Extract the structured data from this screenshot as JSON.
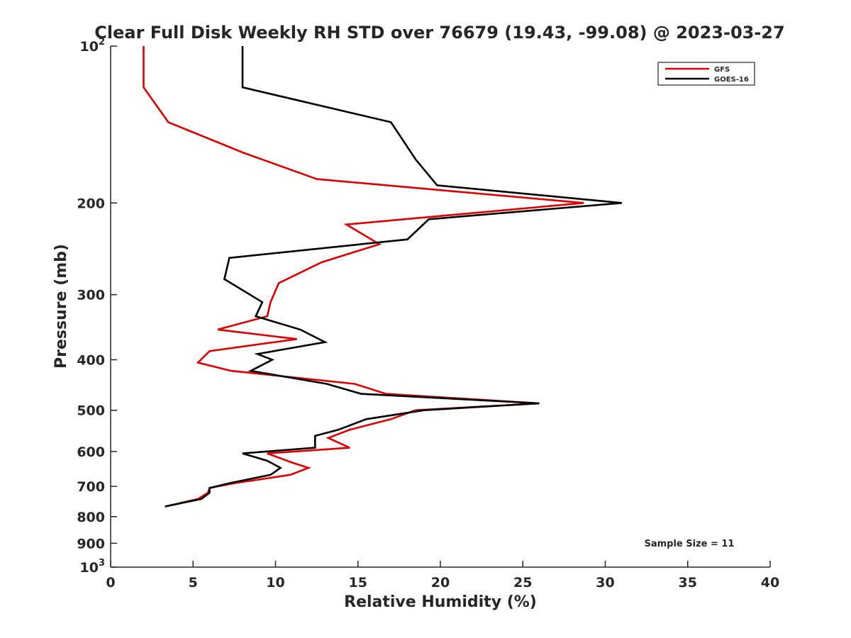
{
  "chart_data": {
    "type": "line",
    "title": "Clear Full Disk Weekly RH STD over 76679 (19.43, -99.08) @ 2023-03-27",
    "xlabel": "Relative Humidity (%)",
    "ylabel": "Pressure (mb)",
    "xlim": [
      0,
      40
    ],
    "ylim": [
      100,
      1000
    ],
    "y_scale": "log",
    "y_reversed": true,
    "grid": false,
    "legend_position": "top-right",
    "x_ticks": [
      0,
      5,
      10,
      15,
      20,
      25,
      30,
      35,
      40
    ],
    "x_tick_labels": [
      "0",
      "5",
      "10",
      "15",
      "20",
      "25",
      "30",
      "35",
      "40"
    ],
    "y_ticks": [
      100,
      200,
      300,
      400,
      500,
      600,
      700,
      800,
      900,
      1000
    ],
    "y_tick_labels": [
      {
        "base": "10",
        "sup": "2"
      },
      {
        "base": "200",
        "sup": ""
      },
      {
        "base": "300",
        "sup": ""
      },
      {
        "base": "400",
        "sup": ""
      },
      {
        "base": "500",
        "sup": ""
      },
      {
        "base": "600",
        "sup": ""
      },
      {
        "base": "700",
        "sup": ""
      },
      {
        "base": "800",
        "sup": ""
      },
      {
        "base": "900",
        "sup": ""
      },
      {
        "base": "10",
        "sup": "3"
      }
    ],
    "annotation": "Sample Size = 11",
    "series": [
      {
        "name": "GFS",
        "color": "#e00000",
        "points": [
          [
            2.0,
            100
          ],
          [
            2.0,
            120
          ],
          [
            3.5,
            140
          ],
          [
            8.0,
            160
          ],
          [
            12.5,
            180
          ],
          [
            28.7,
            200
          ],
          [
            14.3,
            220
          ],
          [
            16.3,
            240
          ],
          [
            12.8,
            260
          ],
          [
            10.2,
            285
          ],
          [
            9.7,
            310
          ],
          [
            9.5,
            330
          ],
          [
            6.5,
            350
          ],
          [
            11.3,
            365
          ],
          [
            6.0,
            385
          ],
          [
            5.3,
            405
          ],
          [
            7.3,
            420
          ],
          [
            14.8,
            445
          ],
          [
            16.7,
            465
          ],
          [
            26.0,
            485
          ],
          [
            18.5,
            500
          ],
          [
            17.0,
            520
          ],
          [
            14.5,
            545
          ],
          [
            13.2,
            565
          ],
          [
            14.5,
            590
          ],
          [
            9.5,
            605
          ],
          [
            11.0,
            630
          ],
          [
            12.0,
            645
          ],
          [
            10.9,
            665
          ],
          [
            7.5,
            690
          ],
          [
            6.0,
            705
          ],
          [
            5.9,
            720
          ],
          [
            5.3,
            740
          ],
          [
            3.3,
            765
          ]
        ]
      },
      {
        "name": "GOES-16",
        "color": "#000000",
        "points": [
          [
            8.0,
            100
          ],
          [
            8.0,
            120
          ],
          [
            17.0,
            140
          ],
          [
            18.5,
            165
          ],
          [
            19.8,
            185
          ],
          [
            31.0,
            200
          ],
          [
            19.3,
            215
          ],
          [
            18.0,
            235
          ],
          [
            7.2,
            255
          ],
          [
            6.9,
            280
          ],
          [
            9.2,
            310
          ],
          [
            8.8,
            330
          ],
          [
            11.5,
            350
          ],
          [
            13.0,
            370
          ],
          [
            8.9,
            390
          ],
          [
            9.8,
            400
          ],
          [
            8.5,
            420
          ],
          [
            13.1,
            445
          ],
          [
            15.2,
            465
          ],
          [
            26.0,
            485
          ],
          [
            19.0,
            500
          ],
          [
            15.5,
            520
          ],
          [
            13.8,
            545
          ],
          [
            12.4,
            560
          ],
          [
            12.4,
            590
          ],
          [
            8.0,
            605
          ],
          [
            9.5,
            625
          ],
          [
            10.3,
            645
          ],
          [
            9.7,
            665
          ],
          [
            7.2,
            690
          ],
          [
            6.0,
            705
          ],
          [
            6.0,
            720
          ],
          [
            5.5,
            740
          ],
          [
            3.3,
            765
          ]
        ]
      }
    ]
  }
}
